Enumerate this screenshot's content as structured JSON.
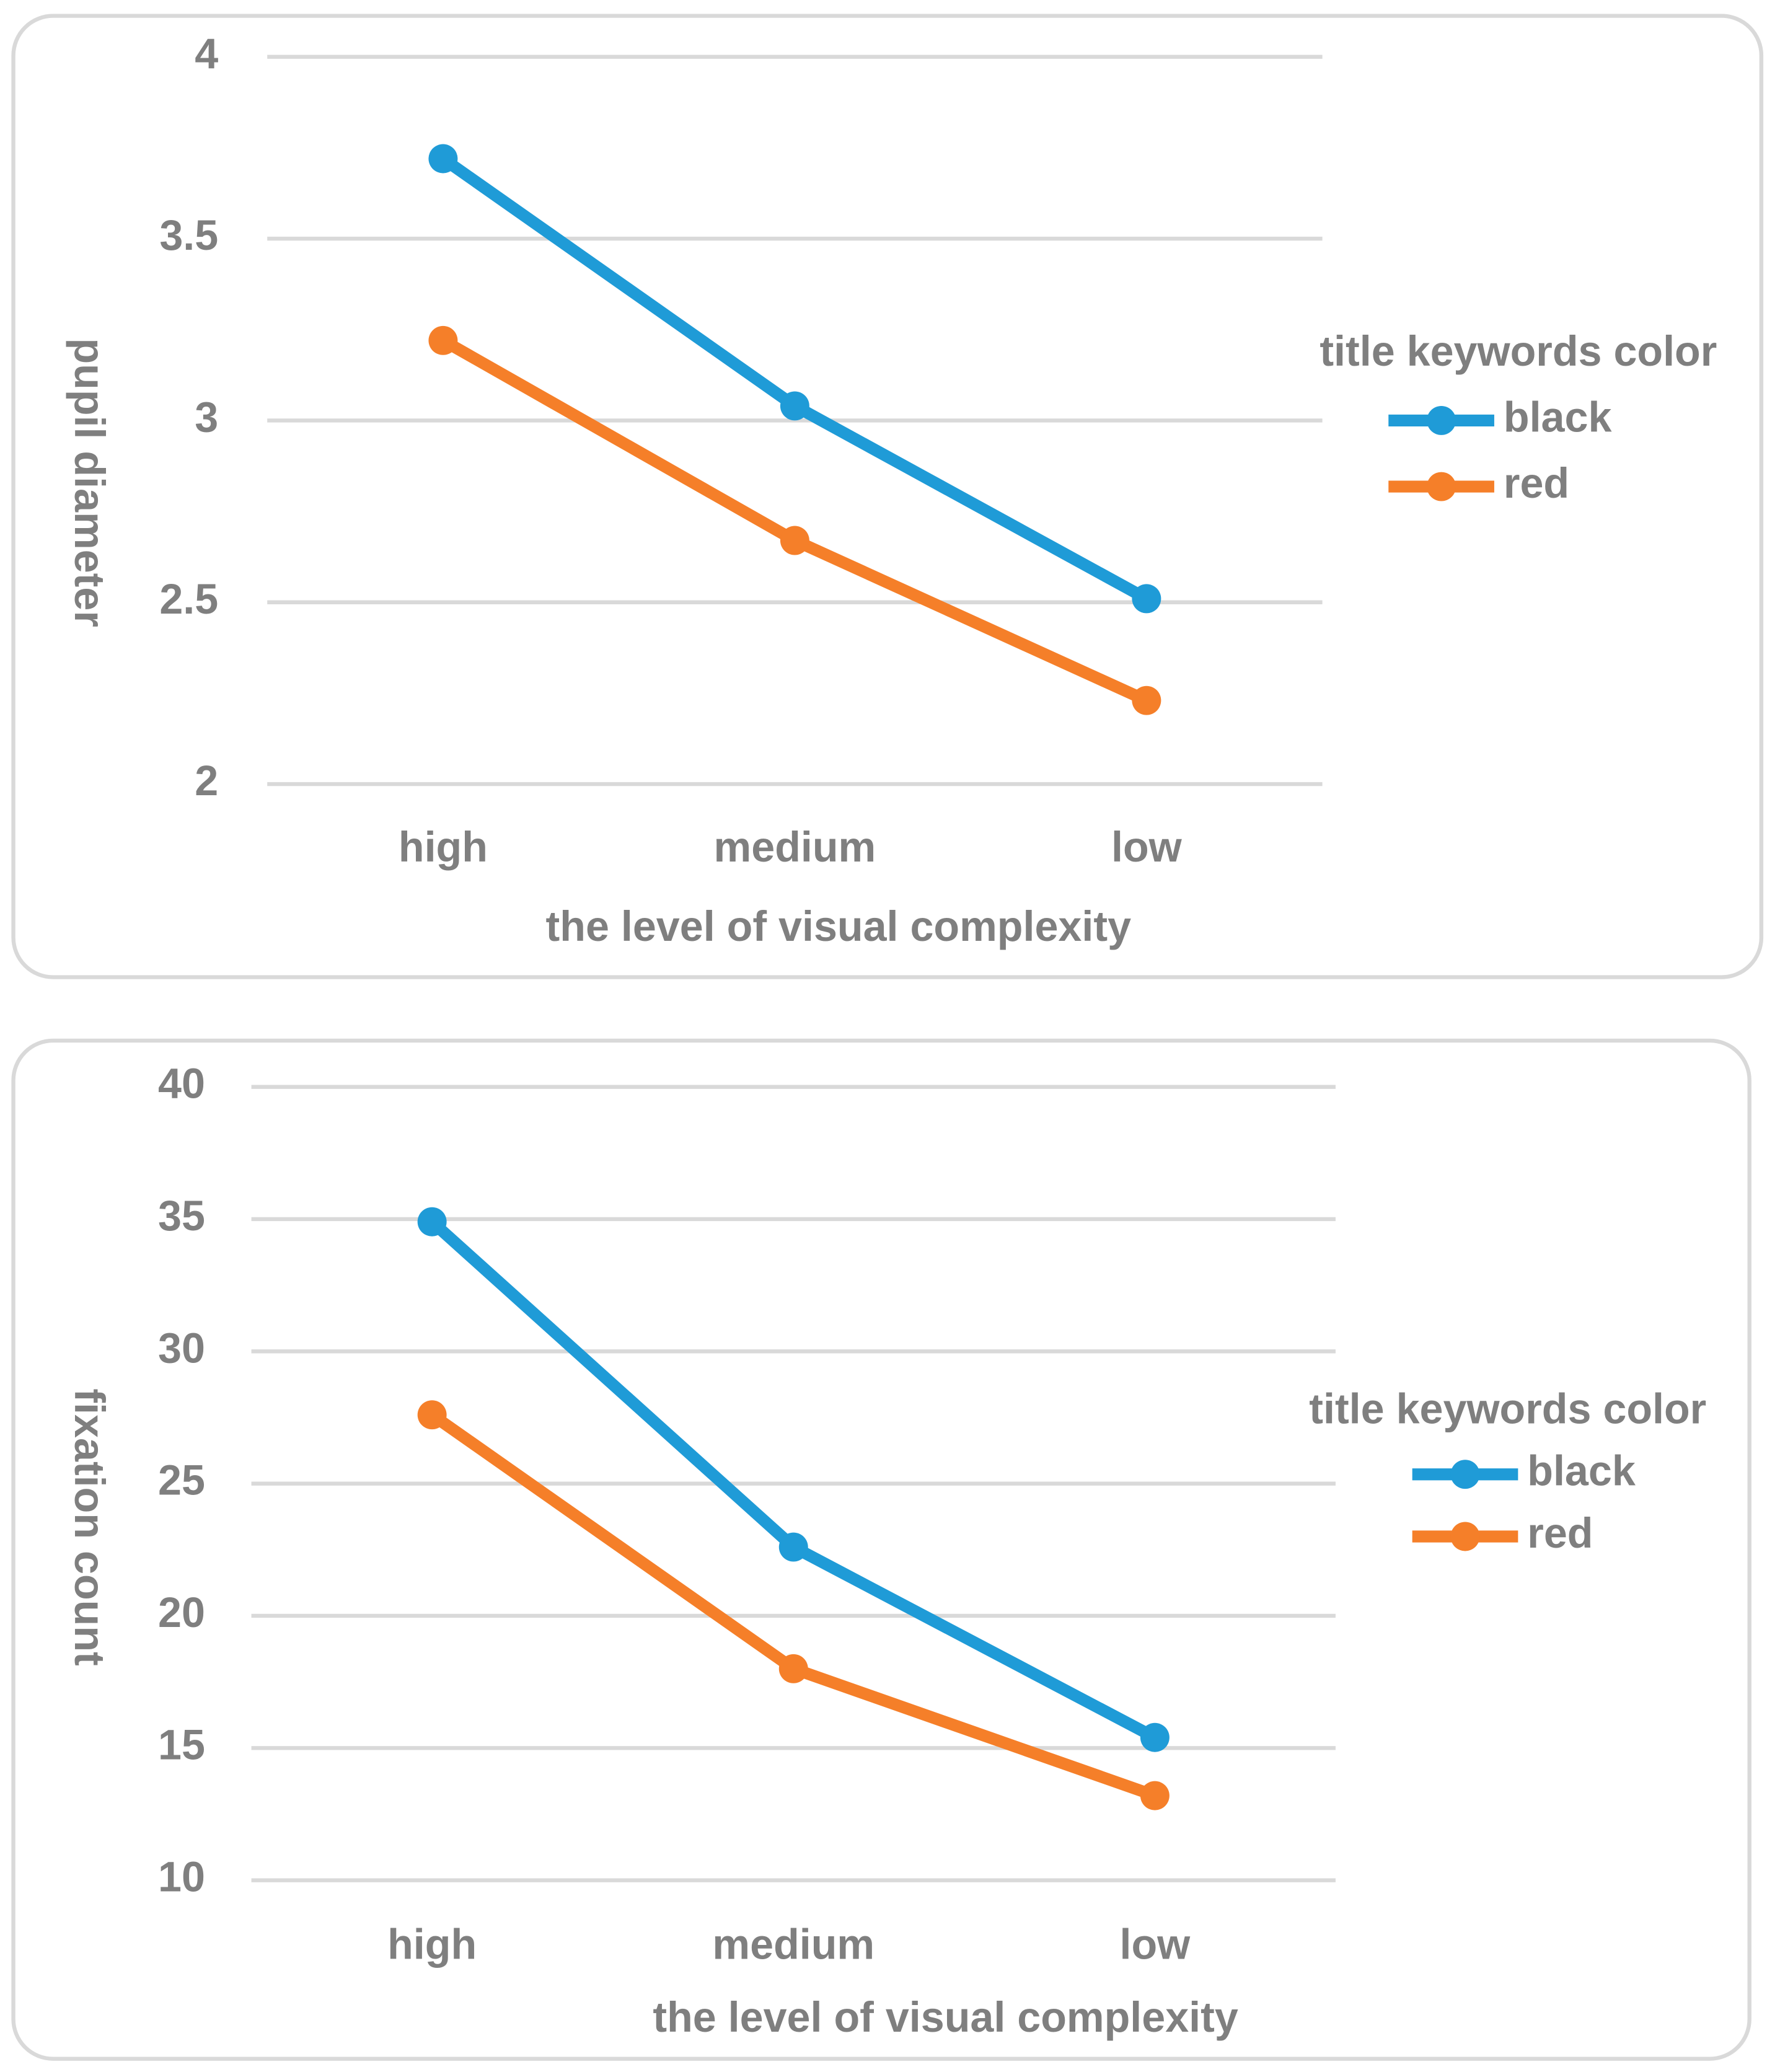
{
  "chart_data": [
    {
      "type": "line",
      "categories": [
        "high",
        "medium",
        "low"
      ],
      "x_label": "the level of visual complexity",
      "y_label": "pupil diameter",
      "legend_title": "title keywords color",
      "legend_position": "right",
      "grid": true,
      "ylim": [
        2,
        4
      ],
      "yticks": [
        2,
        2.5,
        3,
        3.5,
        4
      ],
      "series": [
        {
          "name": "black",
          "color": "#1f9bd7",
          "values": [
            3.72,
            3.04,
            2.51
          ]
        },
        {
          "name": "red",
          "color": "#f57f29",
          "values": [
            3.22,
            2.67,
            2.23
          ]
        }
      ]
    },
    {
      "type": "line",
      "categories": [
        "high",
        "medium",
        "low"
      ],
      "x_label": "the level of visual complexity",
      "y_label": "fixation count",
      "legend_title": "title keywords color",
      "legend_position": "right",
      "grid": true,
      "ylim": [
        10,
        40
      ],
      "yticks": [
        10,
        15,
        20,
        25,
        30,
        35,
        40
      ],
      "series": [
        {
          "name": "black",
          "color": "#1f9bd7",
          "values": [
            34.9,
            22.6,
            15.4
          ]
        },
        {
          "name": "red",
          "color": "#f57f29",
          "values": [
            27.6,
            18.0,
            13.2
          ]
        }
      ]
    }
  ]
}
